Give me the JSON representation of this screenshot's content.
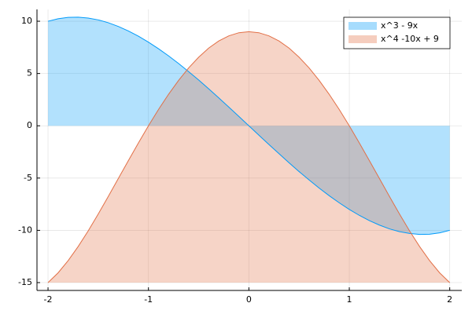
{
  "chart_data": {
    "type": "line",
    "x": [
      -2,
      -1.9,
      -1.8,
      -1.7,
      -1.6,
      -1.5,
      -1.4,
      -1.3,
      -1.2,
      -1.1,
      -1,
      -0.9,
      -0.8,
      -0.7,
      -0.6,
      -0.5,
      -0.4,
      -0.3,
      -0.2,
      -0.1,
      0,
      0.1,
      0.2,
      0.3,
      0.4,
      0.5,
      0.6,
      0.7,
      0.8,
      0.9,
      1,
      1.1,
      1.2,
      1.3,
      1.4,
      1.5,
      1.6,
      1.7,
      1.8,
      1.9,
      2
    ],
    "series": [
      {
        "name": "x^3 - 9x",
        "color": "#009af9",
        "fillrange": 0,
        "values": [
          10,
          10.24,
          10.37,
          10.39,
          10.3,
          10.13,
          9.86,
          9.5,
          9.07,
          8.57,
          8,
          7.37,
          6.69,
          5.96,
          5.18,
          4.38,
          3.54,
          2.67,
          1.79,
          0.9,
          0,
          -0.9,
          -1.79,
          -2.67,
          -3.54,
          -4.38,
          -5.18,
          -5.96,
          -6.69,
          -7.37,
          -8,
          -8.57,
          -9.07,
          -9.5,
          -9.86,
          -10.13,
          -10.3,
          -10.39,
          -10.37,
          -10.24,
          -10
        ]
      },
      {
        "name": "x^4 -10x + 9",
        "color": "#e26f46",
        "fillrange": -15,
        "values": [
          -15,
          -14.07,
          -12.9,
          -11.55,
          -10.05,
          -8.44,
          -6.76,
          -5.04,
          -3.33,
          -1.64,
          0,
          1.56,
          3.01,
          4.34,
          5.53,
          6.56,
          7.43,
          8.11,
          8.6,
          8.9,
          9,
          8.9,
          8.6,
          8.11,
          7.43,
          6.56,
          5.53,
          4.34,
          3.01,
          1.56,
          0,
          -1.64,
          -3.33,
          -5.04,
          -6.76,
          -8.44,
          -10.05,
          -11.55,
          -12.9,
          -14.07,
          -15
        ]
      }
    ],
    "xlim": [
      -2.11,
      2.12
    ],
    "ylim": [
      -15.75,
      11.13
    ],
    "xticks": [
      -2,
      -1,
      0,
      1,
      2
    ],
    "yticks": [
      -15,
      -10,
      -5,
      0,
      5,
      10
    ],
    "grid": true,
    "fill_opacity": 0.3,
    "legend": "top-right"
  }
}
